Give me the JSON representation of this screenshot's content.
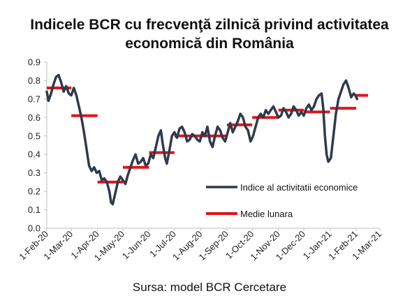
{
  "title_line1": "Indicele BCR cu frecvenţă zilnică privind activitatea",
  "title_line2": "economică din România",
  "source": "Sursa: model BCR Cercetare",
  "chart_data": {
    "type": "line",
    "title": "Indicele BCR cu frecvenţă zilnică privind activitatea economică din România",
    "x_tick_labels": [
      "1-Feb-20",
      "1-Mar-20",
      "1-Apr-20",
      "1-May-20",
      "1-Jun-20",
      "1-Jul-20",
      "1-Aug-20",
      "1-Sep-20",
      "1-Oct-20",
      "1-Nov-20",
      "1-Dec-20",
      "1-Jan-21",
      "1-Feb-21",
      "1-Mar-21"
    ],
    "x_tick_days": [
      0,
      29,
      60,
      90,
      121,
      151,
      182,
      213,
      243,
      274,
      304,
      335,
      366,
      394
    ],
    "y_ticks": [
      "0.0",
      "0.1",
      "0.2",
      "0.3",
      "0.4",
      "0.5",
      "0.6",
      "0.7",
      "0.8",
      "0.9"
    ],
    "ylim": [
      0,
      0.9
    ],
    "grid": false,
    "legend_position": "right-middle",
    "series": [
      {
        "name": "Indice al activitatii economice",
        "color": "#2f3a4b",
        "style": "line",
        "x_start": "1-Feb-20",
        "points": [
          [
            "1-Feb-20",
            0.74
          ],
          [
            "3-Feb-20",
            0.69
          ],
          [
            "6-Feb-20",
            0.73
          ],
          [
            "9-Feb-20",
            0.78
          ],
          [
            "12-Feb-20",
            0.82
          ],
          [
            "15-Feb-20",
            0.83
          ],
          [
            "18-Feb-20",
            0.79
          ],
          [
            "21-Feb-20",
            0.74
          ],
          [
            "24-Feb-20",
            0.77
          ],
          [
            "27-Feb-20",
            0.73
          ],
          [
            "1-Mar-20",
            0.72
          ],
          [
            "4-Mar-20",
            0.76
          ],
          [
            "7-Mar-20",
            0.72
          ],
          [
            "10-Mar-20",
            0.66
          ],
          [
            "13-Mar-20",
            0.6
          ],
          [
            "16-Mar-20",
            0.52
          ],
          [
            "19-Mar-20",
            0.43
          ],
          [
            "22-Mar-20",
            0.34
          ],
          [
            "25-Mar-20",
            0.31
          ],
          [
            "28-Mar-20",
            0.33
          ],
          [
            "31-Mar-20",
            0.3
          ],
          [
            "3-Apr-20",
            0.31
          ],
          [
            "6-Apr-20",
            0.26
          ],
          [
            "9-Apr-20",
            0.27
          ],
          [
            "12-Apr-20",
            0.25
          ],
          [
            "15-Apr-20",
            0.2
          ],
          [
            "17-Apr-20",
            0.14
          ],
          [
            "19-Apr-20",
            0.13
          ],
          [
            "22-Apr-20",
            0.19
          ],
          [
            "25-Apr-20",
            0.25
          ],
          [
            "28-Apr-20",
            0.28
          ],
          [
            "1-May-20",
            0.26
          ],
          [
            "4-May-20",
            0.24
          ],
          [
            "7-May-20",
            0.29
          ],
          [
            "10-May-20",
            0.33
          ],
          [
            "13-May-20",
            0.37
          ],
          [
            "16-May-20",
            0.4
          ],
          [
            "19-May-20",
            0.35
          ],
          [
            "22-May-20",
            0.36
          ],
          [
            "25-May-20",
            0.38
          ],
          [
            "28-May-20",
            0.34
          ],
          [
            "31-May-20",
            0.35
          ],
          [
            "3-Jun-20",
            0.4
          ],
          [
            "6-Jun-20",
            0.38
          ],
          [
            "9-Jun-20",
            0.44
          ],
          [
            "12-Jun-20",
            0.5
          ],
          [
            "15-Jun-20",
            0.53
          ],
          [
            "17-Jun-20",
            0.46
          ],
          [
            "20-Jun-20",
            0.38
          ],
          [
            "22-Jun-20",
            0.35
          ],
          [
            "25-Jun-20",
            0.42
          ],
          [
            "28-Jun-20",
            0.5
          ],
          [
            "1-Jul-20",
            0.52
          ],
          [
            "4-Jul-20",
            0.49
          ],
          [
            "7-Jul-20",
            0.54
          ],
          [
            "10-Jul-20",
            0.55
          ],
          [
            "13-Jul-20",
            0.52
          ],
          [
            "16-Jul-20",
            0.47
          ],
          [
            "19-Jul-20",
            0.48
          ],
          [
            "22-Jul-20",
            0.51
          ],
          [
            "25-Jul-20",
            0.5
          ],
          [
            "28-Jul-20",
            0.48
          ],
          [
            "31-Jul-20",
            0.47
          ],
          [
            "3-Aug-20",
            0.52
          ],
          [
            "6-Aug-20",
            0.5
          ],
          [
            "9-Aug-20",
            0.55
          ],
          [
            "12-Aug-20",
            0.47
          ],
          [
            "15-Aug-20",
            0.44
          ],
          [
            "18-Aug-20",
            0.5
          ],
          [
            "21-Aug-20",
            0.55
          ],
          [
            "24-Aug-20",
            0.53
          ],
          [
            "27-Aug-20",
            0.49
          ],
          [
            "30-Aug-20",
            0.47
          ],
          [
            "2-Sep-20",
            0.52
          ],
          [
            "5-Sep-20",
            0.57
          ],
          [
            "8-Sep-20",
            0.52
          ],
          [
            "11-Sep-20",
            0.55
          ],
          [
            "14-Sep-20",
            0.58
          ],
          [
            "17-Sep-20",
            0.62
          ],
          [
            "20-Sep-20",
            0.6
          ],
          [
            "23-Sep-20",
            0.55
          ],
          [
            "26-Sep-20",
            0.53
          ],
          [
            "29-Sep-20",
            0.47
          ],
          [
            "2-Oct-20",
            0.5
          ],
          [
            "5-Oct-20",
            0.55
          ],
          [
            "8-Oct-20",
            0.6
          ],
          [
            "11-Oct-20",
            0.62
          ],
          [
            "14-Oct-20",
            0.6
          ],
          [
            "17-Oct-20",
            0.64
          ],
          [
            "20-Oct-20",
            0.62
          ],
          [
            "23-Oct-20",
            0.64
          ],
          [
            "26-Oct-20",
            0.66
          ],
          [
            "29-Oct-20",
            0.63
          ],
          [
            "1-Nov-20",
            0.6
          ],
          [
            "4-Nov-20",
            0.61
          ],
          [
            "7-Nov-20",
            0.65
          ],
          [
            "10-Nov-20",
            0.63
          ],
          [
            "13-Nov-20",
            0.6
          ],
          [
            "16-Nov-20",
            0.62
          ],
          [
            "19-Nov-20",
            0.66
          ],
          [
            "22-Nov-20",
            0.64
          ],
          [
            "25-Nov-20",
            0.61
          ],
          [
            "28-Nov-20",
            0.63
          ],
          [
            "1-Dec-20",
            0.61
          ],
          [
            "4-Dec-20",
            0.65
          ],
          [
            "7-Dec-20",
            0.67
          ],
          [
            "10-Dec-20",
            0.64
          ],
          [
            "13-Dec-20",
            0.66
          ],
          [
            "16-Dec-20",
            0.7
          ],
          [
            "19-Dec-20",
            0.72
          ],
          [
            "22-Dec-20",
            0.73
          ],
          [
            "24-Dec-20",
            0.65
          ],
          [
            "26-Dec-20",
            0.5
          ],
          [
            "28-Dec-20",
            0.4
          ],
          [
            "30-Dec-20",
            0.36
          ],
          [
            "2-Jan-21",
            0.38
          ],
          [
            "5-Jan-21",
            0.5
          ],
          [
            "8-Jan-21",
            0.62
          ],
          [
            "11-Jan-21",
            0.7
          ],
          [
            "14-Jan-21",
            0.74
          ],
          [
            "17-Jan-21",
            0.78
          ],
          [
            "20-Jan-21",
            0.8
          ],
          [
            "23-Jan-21",
            0.76
          ],
          [
            "26-Jan-21",
            0.71
          ],
          [
            "29-Jan-21",
            0.73
          ],
          [
            "31-Jan-21",
            0.72
          ],
          [
            "2-Feb-21",
            0.7
          ]
        ]
      },
      {
        "name": "Medie lunara",
        "color": "#e0141b",
        "style": "step",
        "segments": [
          {
            "month": "Feb-20",
            "value": 0.76
          },
          {
            "month": "Mar-20",
            "value": 0.61
          },
          {
            "month": "Apr-20",
            "value": 0.25
          },
          {
            "month": "May-20",
            "value": 0.33
          },
          {
            "month": "Jun-20",
            "value": 0.41
          },
          {
            "month": "Jul-20",
            "value": 0.5
          },
          {
            "month": "Aug-20",
            "value": 0.5
          },
          {
            "month": "Sep-20",
            "value": 0.56
          },
          {
            "month": "Oct-20",
            "value": 0.6
          },
          {
            "month": "Nov-20",
            "value": 0.64
          },
          {
            "month": "Dec-20",
            "value": 0.63
          },
          {
            "month": "Jan-21",
            "value": 0.65
          },
          {
            "month": "Feb-21",
            "value": 0.72
          }
        ]
      }
    ]
  }
}
